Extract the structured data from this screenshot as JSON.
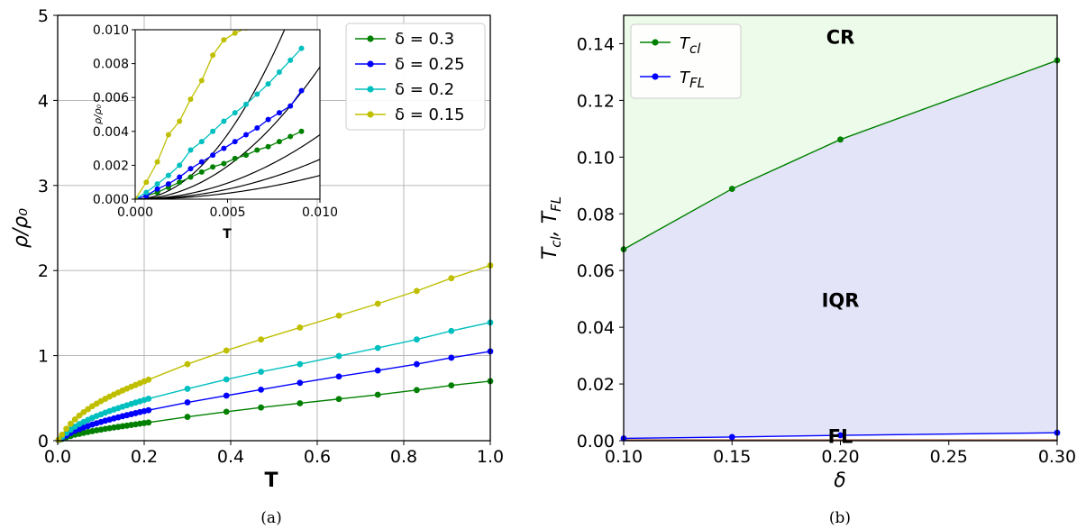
{
  "colors": {
    "green": "#008000",
    "blue": "#0000ff",
    "cyan": "#00bfbf",
    "yellow": "#bfbf00",
    "black": "#000000",
    "cr_fill": "#edfbea",
    "iqr_fill": "#e4e4f8",
    "fl_line": "#a0522d",
    "grid": "#b0b0b0"
  },
  "captions": {
    "a": "(a)",
    "b": "(b)"
  },
  "chart_data": [
    {
      "id": "a",
      "type": "line",
      "xlabel": "T",
      "ylabel": "ρ/ρ₀",
      "xlim": [
        0,
        1.0
      ],
      "ylim": [
        0,
        5
      ],
      "xticks": [
        "0.0",
        "0.2",
        "0.4",
        "0.6",
        "0.8",
        "1.0"
      ],
      "yticks": [
        "0",
        "1",
        "2",
        "3",
        "4",
        "5"
      ],
      "grid": true,
      "legend_position": "top-right",
      "series": [
        {
          "name": "δ = 0.3",
          "color": "green",
          "x": [
            0.002,
            0.01,
            0.02,
            0.03,
            0.04,
            0.05,
            0.06,
            0.07,
            0.08,
            0.09,
            0.1,
            0.11,
            0.12,
            0.13,
            0.14,
            0.15,
            0.16,
            0.17,
            0.18,
            0.19,
            0.2,
            0.21,
            0.3,
            0.39,
            0.47,
            0.56,
            0.65,
            0.74,
            0.83,
            0.91,
            1.0
          ],
          "y": [
            0.005,
            0.02,
            0.04,
            0.055,
            0.07,
            0.08,
            0.092,
            0.102,
            0.112,
            0.122,
            0.13,
            0.139,
            0.147,
            0.155,
            0.162,
            0.17,
            0.177,
            0.185,
            0.192,
            0.2,
            0.207,
            0.214,
            0.28,
            0.34,
            0.39,
            0.44,
            0.49,
            0.54,
            0.595,
            0.65,
            0.7
          ]
        },
        {
          "name": "δ = 0.25",
          "color": "blue",
          "x": [
            0.002,
            0.01,
            0.02,
            0.03,
            0.04,
            0.05,
            0.06,
            0.07,
            0.08,
            0.09,
            0.1,
            0.11,
            0.12,
            0.13,
            0.14,
            0.15,
            0.16,
            0.17,
            0.18,
            0.19,
            0.2,
            0.21,
            0.3,
            0.39,
            0.47,
            0.56,
            0.65,
            0.74,
            0.83,
            0.91,
            1.0
          ],
          "y": [
            0.006,
            0.03,
            0.06,
            0.09,
            0.115,
            0.135,
            0.155,
            0.172,
            0.19,
            0.205,
            0.22,
            0.235,
            0.248,
            0.262,
            0.275,
            0.288,
            0.3,
            0.312,
            0.324,
            0.336,
            0.347,
            0.358,
            0.45,
            0.53,
            0.6,
            0.68,
            0.755,
            0.825,
            0.9,
            0.975,
            1.05
          ]
        },
        {
          "name": "δ = 0.2",
          "color": "cyan",
          "x": [
            0.002,
            0.01,
            0.02,
            0.03,
            0.04,
            0.05,
            0.06,
            0.07,
            0.08,
            0.09,
            0.1,
            0.11,
            0.12,
            0.13,
            0.14,
            0.15,
            0.16,
            0.17,
            0.18,
            0.19,
            0.2,
            0.21,
            0.3,
            0.39,
            0.47,
            0.56,
            0.65,
            0.74,
            0.83,
            0.91,
            1.0
          ],
          "y": [
            0.008,
            0.045,
            0.09,
            0.13,
            0.165,
            0.195,
            0.22,
            0.245,
            0.268,
            0.29,
            0.31,
            0.33,
            0.348,
            0.366,
            0.383,
            0.4,
            0.416,
            0.432,
            0.448,
            0.463,
            0.478,
            0.493,
            0.61,
            0.72,
            0.81,
            0.9,
            0.995,
            1.09,
            1.19,
            1.29,
            1.39
          ]
        },
        {
          "name": "δ = 0.15",
          "color": "yellow",
          "x": [
            0.002,
            0.01,
            0.02,
            0.03,
            0.04,
            0.05,
            0.06,
            0.07,
            0.08,
            0.09,
            0.1,
            0.11,
            0.12,
            0.13,
            0.14,
            0.15,
            0.16,
            0.17,
            0.18,
            0.19,
            0.2,
            0.21,
            0.3,
            0.39,
            0.47,
            0.56,
            0.65,
            0.74,
            0.83,
            0.91,
            1.0
          ],
          "y": [
            0.01,
            0.07,
            0.14,
            0.2,
            0.25,
            0.295,
            0.335,
            0.37,
            0.405,
            0.435,
            0.465,
            0.492,
            0.518,
            0.543,
            0.567,
            0.59,
            0.612,
            0.634,
            0.655,
            0.676,
            0.697,
            0.717,
            0.9,
            1.06,
            1.19,
            1.33,
            1.47,
            1.61,
            1.76,
            1.91,
            2.06
          ]
        }
      ]
    },
    {
      "id": "a-inset",
      "type": "line",
      "xlabel": "T",
      "ylabel": "ρ/ρ₀",
      "xlim": [
        0,
        0.01
      ],
      "ylim": [
        0,
        0.01
      ],
      "xticks": [
        "0.000",
        "0.005",
        "0.010"
      ],
      "yticks": [
        "0.000",
        "0.002",
        "0.004",
        "0.006",
        "0.008",
        "0.010"
      ],
      "series": [
        {
          "color": "green",
          "x": [
            0,
            0.0006,
            0.0012,
            0.0018,
            0.0024,
            0.003,
            0.0036,
            0.0042,
            0.0048,
            0.0054,
            0.006,
            0.0066,
            0.0072,
            0.0078,
            0.0084,
            0.009
          ],
          "y": [
            0,
            0.0002,
            0.0004,
            0.0007,
            0.001,
            0.0013,
            0.0016,
            0.0019,
            0.0021,
            0.0024,
            0.0026,
            0.0029,
            0.0031,
            0.0034,
            0.0037,
            0.004
          ]
        },
        {
          "color": "blue",
          "x": [
            0,
            0.0006,
            0.0012,
            0.0018,
            0.0024,
            0.003,
            0.0036,
            0.0042,
            0.0048,
            0.0054,
            0.006,
            0.0066,
            0.0072,
            0.0078,
            0.0084,
            0.009
          ],
          "y": [
            0,
            0.0002,
            0.0006,
            0.0009,
            0.0013,
            0.0018,
            0.0022,
            0.0026,
            0.003,
            0.0034,
            0.0038,
            0.0042,
            0.0047,
            0.0051,
            0.0055,
            0.0064
          ]
        },
        {
          "color": "cyan",
          "x": [
            0,
            0.0006,
            0.0012,
            0.0018,
            0.0024,
            0.003,
            0.0036,
            0.0042,
            0.0048,
            0.0054,
            0.006,
            0.0066,
            0.0072,
            0.0078,
            0.0084,
            0.009
          ],
          "y": [
            0,
            0.0004,
            0.0009,
            0.0014,
            0.002,
            0.0029,
            0.0034,
            0.004,
            0.0046,
            0.0051,
            0.0056,
            0.0062,
            0.0068,
            0.0075,
            0.0082,
            0.0089
          ]
        },
        {
          "color": "yellow",
          "x": [
            0,
            0.0006,
            0.0012,
            0.0018,
            0.0024,
            0.003,
            0.0036,
            0.0042,
            0.0048,
            0.0054,
            0.006
          ],
          "y": [
            0,
            0.001,
            0.0022,
            0.0038,
            0.0046,
            0.0059,
            0.007,
            0.0085,
            0.0094,
            0.0098,
            0.0101
          ]
        }
      ],
      "fits": [
        {
          "color": "black",
          "a": 1.53
        },
        {
          "color": "black",
          "a": 0.78
        },
        {
          "color": "black",
          "a": 0.38
        },
        {
          "color": "black",
          "a": 0.235
        },
        {
          "color": "black",
          "a": 0.14
        }
      ]
    },
    {
      "id": "b",
      "type": "area",
      "xlabel": "δ",
      "ylabel": "T_cl, T_FL",
      "xlim": [
        0.1,
        0.3
      ],
      "ylim": [
        0,
        0.15
      ],
      "xticks": [
        "0.10",
        "0.15",
        "0.20",
        "0.25",
        "0.30"
      ],
      "yticks": [
        "0.00",
        "0.02",
        "0.04",
        "0.06",
        "0.08",
        "0.10",
        "0.12",
        "0.14"
      ],
      "legend_position": "top-left",
      "series": [
        {
          "name": "T_cl",
          "color": "green",
          "x": [
            0.1,
            0.15,
            0.2,
            0.3
          ],
          "y": [
            0.0675,
            0.0888,
            0.1062,
            0.1341
          ]
        },
        {
          "name": "T_FL",
          "color": "blue",
          "x": [
            0.1,
            0.15,
            0.2,
            0.3
          ],
          "y": [
            0.0008,
            0.0013,
            0.0019,
            0.0028
          ]
        }
      ],
      "regions": [
        {
          "label": "CR",
          "x": 0.2,
          "y": 0.1425
        },
        {
          "label": "IQR",
          "x": 0.2,
          "y": 0.0498
        },
        {
          "label": "FL",
          "x": 0.2,
          "y": 0.0018
        }
      ]
    }
  ]
}
